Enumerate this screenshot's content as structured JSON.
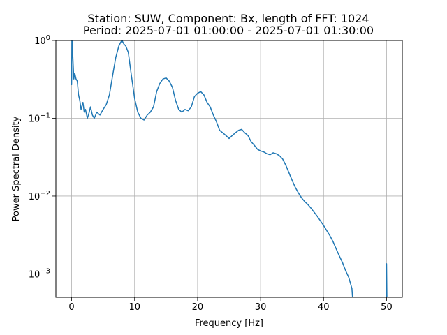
{
  "chart_data": {
    "type": "line",
    "title_line1": "Station: SUW, Component: Bx, length of FFT: 1024",
    "title_line2": "Period: 2025-07-01 01:00:00 - 2025-07-01 01:30:00",
    "xlabel": "Frequency [Hz]",
    "ylabel": "Power Spectral Density",
    "x_scale": "linear",
    "y_scale": "log",
    "xlim": [
      -2.5,
      52.5
    ],
    "ylim": [
      0.0005,
      1
    ],
    "grid": true,
    "line_color": "#1f77b4",
    "x_ticks": [
      {
        "value": 0,
        "label": "0"
      },
      {
        "value": 10,
        "label": "10"
      },
      {
        "value": 20,
        "label": "20"
      },
      {
        "value": 30,
        "label": "30"
      },
      {
        "value": 40,
        "label": "40"
      },
      {
        "value": 50,
        "label": "50"
      }
    ],
    "y_ticks": [
      {
        "value": 0.001,
        "mant": "10",
        "exp": "−3"
      },
      {
        "value": 0.01,
        "mant": "10",
        "exp": "−2"
      },
      {
        "value": 0.1,
        "mant": "10",
        "exp": "−1"
      },
      {
        "value": 1,
        "mant": "10",
        "exp": "0"
      }
    ],
    "series": [
      {
        "x": [
          0,
          0.05,
          0.1,
          0.2,
          0.35,
          0.5,
          0.7,
          0.9,
          1.1,
          1.3,
          1.5,
          1.8,
          2.0,
          2.2,
          2.5,
          2.8,
          3.0,
          3.3,
          3.6,
          4.0,
          4.5,
          5.0,
          5.5,
          6.0,
          6.5,
          7.0,
          7.5,
          7.8,
          8.0,
          8.3,
          8.6,
          9.0,
          9.5,
          10.0,
          10.5,
          11.0,
          11.5,
          12.0,
          12.5,
          13.0,
          13.5,
          14.0,
          14.5,
          15.0,
          15.5,
          16.0,
          16.5,
          17.0,
          17.5,
          18.0,
          18.5,
          19.0,
          19.5,
          20.0,
          20.5,
          21.0,
          21.5,
          22.0,
          22.5,
          23.0,
          23.5,
          24.0,
          24.5,
          25.0,
          25.5,
          26.0,
          26.5,
          27.0,
          27.5,
          28.0,
          28.5,
          29.0,
          29.5,
          30.0,
          30.5,
          31.0,
          31.5,
          32.0,
          32.5,
          33.0,
          33.5,
          34.0,
          34.5,
          35.0,
          35.5,
          36.0,
          36.5,
          37.0,
          37.5,
          38.0,
          38.5,
          39.0,
          39.5,
          40.0,
          40.5,
          41.0,
          41.5,
          42.0,
          42.5,
          43.0,
          43.5,
          44.0,
          44.5,
          44.6
        ],
        "y": [
          0.27,
          1.0,
          0.95,
          0.6,
          0.32,
          0.38,
          0.32,
          0.3,
          0.2,
          0.17,
          0.13,
          0.16,
          0.12,
          0.13,
          0.1,
          0.12,
          0.14,
          0.11,
          0.1,
          0.12,
          0.11,
          0.13,
          0.15,
          0.2,
          0.35,
          0.6,
          0.85,
          0.95,
          1.0,
          0.9,
          0.85,
          0.7,
          0.35,
          0.18,
          0.12,
          0.1,
          0.095,
          0.11,
          0.12,
          0.14,
          0.22,
          0.28,
          0.32,
          0.33,
          0.3,
          0.25,
          0.17,
          0.13,
          0.12,
          0.13,
          0.125,
          0.14,
          0.19,
          0.21,
          0.22,
          0.2,
          0.16,
          0.14,
          0.11,
          0.09,
          0.07,
          0.065,
          0.06,
          0.055,
          0.06,
          0.065,
          0.07,
          0.072,
          0.065,
          0.06,
          0.05,
          0.045,
          0.04,
          0.038,
          0.037,
          0.035,
          0.034,
          0.036,
          0.035,
          0.033,
          0.03,
          0.025,
          0.02,
          0.016,
          0.013,
          0.011,
          0.0095,
          0.0085,
          0.0078,
          0.007,
          0.0062,
          0.0055,
          0.0048,
          0.0042,
          0.0036,
          0.0031,
          0.0026,
          0.0021,
          0.0017,
          0.0014,
          0.0011,
          0.0009,
          0.00065,
          0.0005
        ]
      },
      {
        "x": [
          49.95,
          50.0,
          50.05
        ],
        "y": [
          0.0005,
          0.00135,
          0.0005
        ]
      }
    ]
  }
}
